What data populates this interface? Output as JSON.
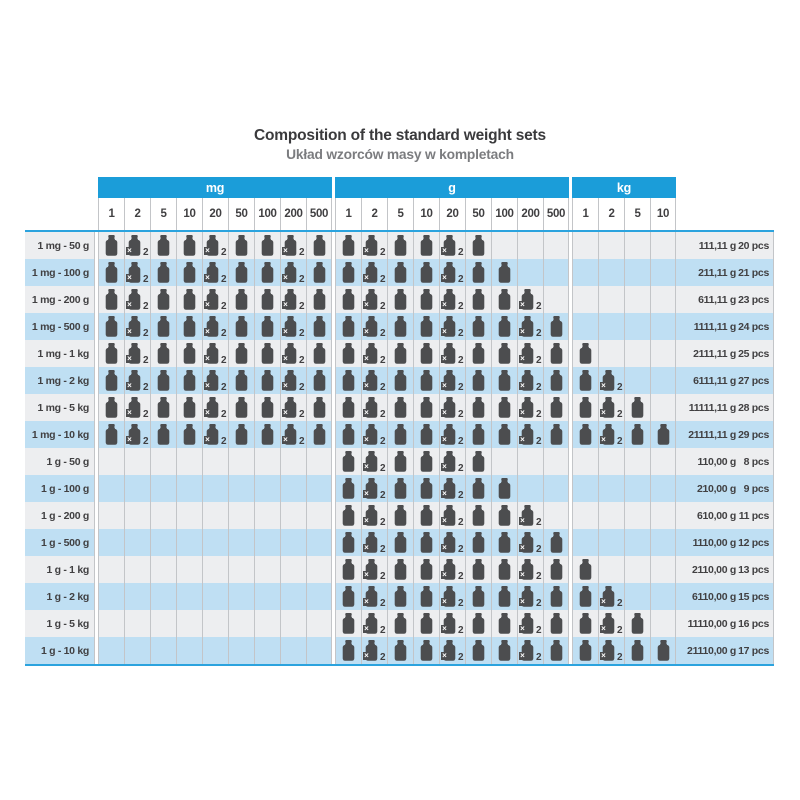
{
  "page": {
    "title_en": "Composition of the standard weight sets",
    "title_pl": "Układ wzorców masy w kompletach"
  },
  "colors": {
    "group_header_bg": "#1b9dd9",
    "rule_line": "#2ba3de",
    "cell_separator": "#c3c5c8",
    "row_odd_bg": "#edeef0",
    "row_even_bg": "#bfdff3",
    "weight_icon": "#4c4d4f",
    "text": "#414042",
    "subtitle_text": "#7b7c7f"
  },
  "table": {
    "groups": [
      {
        "label": "mg",
        "columns": [
          "1",
          "2",
          "5",
          "10",
          "20",
          "50",
          "100",
          "200",
          "500"
        ]
      },
      {
        "label": "g",
        "columns": [
          "1",
          "2",
          "5",
          "10",
          "20",
          "50",
          "100",
          "200",
          "500"
        ]
      },
      {
        "label": "kg",
        "columns": [
          "1",
          "2",
          "5",
          "10"
        ]
      }
    ],
    "multiplier": {
      "symbol": "×",
      "count": "2"
    },
    "cell_legend": {
      "0": "no weight",
      "1": "one piece",
      "2": "two pieces (×2)"
    },
    "rows": [
      {
        "label": "1 mg - 50 g",
        "cells": [
          1,
          2,
          1,
          1,
          2,
          1,
          1,
          2,
          1,
          1,
          2,
          1,
          1,
          2,
          1,
          0,
          0,
          0,
          0,
          0,
          0,
          0
        ],
        "total": "111,11 g",
        "pieces": "20 pcs"
      },
      {
        "label": "1 mg - 100 g",
        "cells": [
          1,
          2,
          1,
          1,
          2,
          1,
          1,
          2,
          1,
          1,
          2,
          1,
          1,
          2,
          1,
          1,
          0,
          0,
          0,
          0,
          0,
          0
        ],
        "total": "211,11 g",
        "pieces": "21 pcs"
      },
      {
        "label": "1 mg - 200 g",
        "cells": [
          1,
          2,
          1,
          1,
          2,
          1,
          1,
          2,
          1,
          1,
          2,
          1,
          1,
          2,
          1,
          1,
          2,
          0,
          0,
          0,
          0,
          0
        ],
        "total": "611,11 g",
        "pieces": "23 pcs"
      },
      {
        "label": "1 mg - 500 g",
        "cells": [
          1,
          2,
          1,
          1,
          2,
          1,
          1,
          2,
          1,
          1,
          2,
          1,
          1,
          2,
          1,
          1,
          2,
          1,
          0,
          0,
          0,
          0
        ],
        "total": "1111,11 g",
        "pieces": "24 pcs"
      },
      {
        "label": "1 mg - 1 kg",
        "cells": [
          1,
          2,
          1,
          1,
          2,
          1,
          1,
          2,
          1,
          1,
          2,
          1,
          1,
          2,
          1,
          1,
          2,
          1,
          1,
          0,
          0,
          0
        ],
        "total": "2111,11 g",
        "pieces": "25 pcs"
      },
      {
        "label": "1 mg - 2 kg",
        "cells": [
          1,
          2,
          1,
          1,
          2,
          1,
          1,
          2,
          1,
          1,
          2,
          1,
          1,
          2,
          1,
          1,
          2,
          1,
          1,
          2,
          0,
          0
        ],
        "total": "6111,11 g",
        "pieces": "27 pcs"
      },
      {
        "label": "1 mg - 5 kg",
        "cells": [
          1,
          2,
          1,
          1,
          2,
          1,
          1,
          2,
          1,
          1,
          2,
          1,
          1,
          2,
          1,
          1,
          2,
          1,
          1,
          2,
          1,
          0
        ],
        "total": "11111,11 g",
        "pieces": "28 pcs"
      },
      {
        "label": "1 mg - 10 kg",
        "cells": [
          1,
          2,
          1,
          1,
          2,
          1,
          1,
          2,
          1,
          1,
          2,
          1,
          1,
          2,
          1,
          1,
          2,
          1,
          1,
          2,
          1,
          1
        ],
        "total": "21111,11 g",
        "pieces": "29 pcs"
      },
      {
        "label": "1 g - 50 g",
        "cells": [
          0,
          0,
          0,
          0,
          0,
          0,
          0,
          0,
          0,
          1,
          2,
          1,
          1,
          2,
          1,
          0,
          0,
          0,
          0,
          0,
          0,
          0
        ],
        "total": "110,00 g",
        "pieces": "8 pcs"
      },
      {
        "label": "1 g - 100 g",
        "cells": [
          0,
          0,
          0,
          0,
          0,
          0,
          0,
          0,
          0,
          1,
          2,
          1,
          1,
          2,
          1,
          1,
          0,
          0,
          0,
          0,
          0,
          0
        ],
        "total": "210,00 g",
        "pieces": "9 pcs"
      },
      {
        "label": "1 g - 200 g",
        "cells": [
          0,
          0,
          0,
          0,
          0,
          0,
          0,
          0,
          0,
          1,
          2,
          1,
          1,
          2,
          1,
          1,
          2,
          0,
          0,
          0,
          0,
          0
        ],
        "total": "610,00 g",
        "pieces": "11 pcs"
      },
      {
        "label": "1 g - 500 g",
        "cells": [
          0,
          0,
          0,
          0,
          0,
          0,
          0,
          0,
          0,
          1,
          2,
          1,
          1,
          2,
          1,
          1,
          2,
          1,
          0,
          0,
          0,
          0
        ],
        "total": "1110,00 g",
        "pieces": "12 pcs"
      },
      {
        "label": "1 g - 1 kg",
        "cells": [
          0,
          0,
          0,
          0,
          0,
          0,
          0,
          0,
          0,
          1,
          2,
          1,
          1,
          2,
          1,
          1,
          2,
          1,
          1,
          0,
          0,
          0
        ],
        "total": "2110,00 g",
        "pieces": "13 pcs"
      },
      {
        "label": "1 g - 2 kg",
        "cells": [
          0,
          0,
          0,
          0,
          0,
          0,
          0,
          0,
          0,
          1,
          2,
          1,
          1,
          2,
          1,
          1,
          2,
          1,
          1,
          2,
          0,
          0
        ],
        "total": "6110,00 g",
        "pieces": "15 pcs"
      },
      {
        "label": "1 g - 5 kg",
        "cells": [
          0,
          0,
          0,
          0,
          0,
          0,
          0,
          0,
          0,
          1,
          2,
          1,
          1,
          2,
          1,
          1,
          2,
          1,
          1,
          2,
          1,
          0
        ],
        "total": "11110,00 g",
        "pieces": "16 pcs"
      },
      {
        "label": "1 g - 10 kg",
        "cells": [
          0,
          0,
          0,
          0,
          0,
          0,
          0,
          0,
          0,
          1,
          2,
          1,
          1,
          2,
          1,
          1,
          2,
          1,
          1,
          2,
          1,
          1
        ],
        "total": "21110,00 g",
        "pieces": "17 pcs"
      }
    ]
  }
}
